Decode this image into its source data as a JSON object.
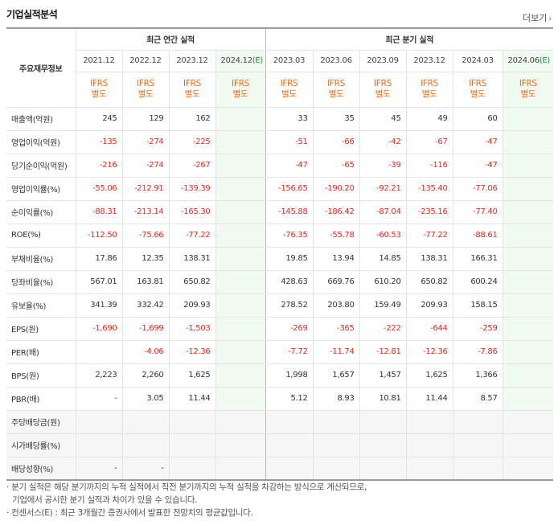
{
  "section_title": "기업실적분석",
  "more_label": "더보기",
  "more_arrow": "›",
  "table": {
    "corner_label": "주요재무정보",
    "annual_group": "최근 연간 실적",
    "quarter_group": "최근 분기 실적",
    "annual_periods": [
      "2021.12",
      "2022.12",
      "2023.12",
      "2024.12"
    ],
    "quarter_periods": [
      "2023.03",
      "2023.06",
      "2023.09",
      "2023.12",
      "2024.03",
      "2024.06"
    ],
    "estimate_mark": "(E)",
    "gaap_top": "IFRS",
    "gaap_bottom": "별도",
    "rows": [
      {
        "label": "매출액(억원)",
        "annual": [
          "245",
          "129",
          "162",
          ""
        ],
        "quarter": [
          "33",
          "35",
          "45",
          "49",
          "60",
          ""
        ]
      },
      {
        "label": "영업이익(억원)",
        "annual": [
          "-135",
          "-274",
          "-225",
          ""
        ],
        "quarter": [
          "-51",
          "-66",
          "-42",
          "-67",
          "-47",
          ""
        ]
      },
      {
        "label": "당기순이익(억원)",
        "annual": [
          "-216",
          "-274",
          "-267",
          ""
        ],
        "quarter": [
          "-47",
          "-65",
          "-39",
          "-116",
          "-47",
          ""
        ]
      },
      {
        "label": "영업이익률(%)",
        "annual": [
          "-55.06",
          "-212.91",
          "-139.39",
          ""
        ],
        "quarter": [
          "-156.65",
          "-190.20",
          "-92.21",
          "-135.40",
          "-77.06",
          ""
        ]
      },
      {
        "label": "순이익률(%)",
        "annual": [
          "-88.31",
          "-213.14",
          "-165.30",
          ""
        ],
        "quarter": [
          "-145.88",
          "-186.42",
          "-87.04",
          "-235.16",
          "-77.40",
          ""
        ]
      },
      {
        "label": "ROE(%)",
        "annual": [
          "-112.50",
          "-75.66",
          "-77.22",
          ""
        ],
        "quarter": [
          "-76.35",
          "-55.78",
          "-60.53",
          "-77.22",
          "-88.61",
          ""
        ]
      },
      {
        "label": "부채비율(%)",
        "annual": [
          "17.86",
          "12.35",
          "138.31",
          ""
        ],
        "quarter": [
          "19.85",
          "13.94",
          "14.85",
          "138.31",
          "166.31",
          ""
        ]
      },
      {
        "label": "당좌비율(%)",
        "annual": [
          "567.01",
          "163.81",
          "650.82",
          ""
        ],
        "quarter": [
          "428.63",
          "669.76",
          "610.20",
          "650.82",
          "600.24",
          ""
        ]
      },
      {
        "label": "유보율(%)",
        "annual": [
          "341.39",
          "332.42",
          "209.93",
          ""
        ],
        "quarter": [
          "278.52",
          "203.80",
          "159.49",
          "209.93",
          "158.15",
          ""
        ]
      },
      {
        "label": "EPS(원)",
        "annual": [
          "-1,690",
          "-1,699",
          "-1,503",
          ""
        ],
        "quarter": [
          "-269",
          "-365",
          "-222",
          "-644",
          "-259",
          ""
        ]
      },
      {
        "label": "PER(배)",
        "annual": [
          "",
          "-4.06",
          "-12.36",
          ""
        ],
        "quarter": [
          "-7.72",
          "-11.74",
          "-12.81",
          "-12.36",
          "-7.86",
          ""
        ]
      },
      {
        "label": "BPS(원)",
        "annual": [
          "2,223",
          "2,260",
          "1,625",
          ""
        ],
        "quarter": [
          "1,998",
          "1,657",
          "1,457",
          "1,625",
          "1,366",
          ""
        ]
      },
      {
        "label": "PBR(배)",
        "annual": [
          "-",
          "3.05",
          "11.44",
          ""
        ],
        "quarter": [
          "5.12",
          "8.93",
          "10.81",
          "11.44",
          "8.57",
          ""
        ]
      },
      {
        "label": "주당배당금(원)",
        "annual": [
          "",
          "",
          "",
          ""
        ],
        "quarter": [
          "",
          "",
          "",
          "",
          "",
          ""
        ],
        "empty": true
      },
      {
        "label": "시가배당률(%)",
        "annual": [
          "",
          "",
          "",
          ""
        ],
        "quarter": [
          "",
          "",
          "",
          "",
          "",
          ""
        ],
        "empty": true
      },
      {
        "label": "배당성향(%)",
        "annual": [
          "-",
          "-",
          "",
          ""
        ],
        "quarter": [
          "",
          "",
          "",
          "",
          "",
          ""
        ],
        "empty": true
      }
    ]
  },
  "notes": [
    "· 분기 실적은 해당 분기까지의 누적 실적에서 직전 분기까지의 누적 실적을 차감하는 방식으로 계산되므로,",
    "기업에서 공시한 분기 실적과 차이가 있을 수 있습니다.",
    "· 컨센서스(E) : 최근 3개월간 증권사에서 발표한 전망치의 평균값입니다."
  ],
  "colors": {
    "negative": "#e0281d",
    "gaap": "#f06a16",
    "estimate_bg": "#f0faf1",
    "estimate_mark": "#1a8f3a"
  }
}
